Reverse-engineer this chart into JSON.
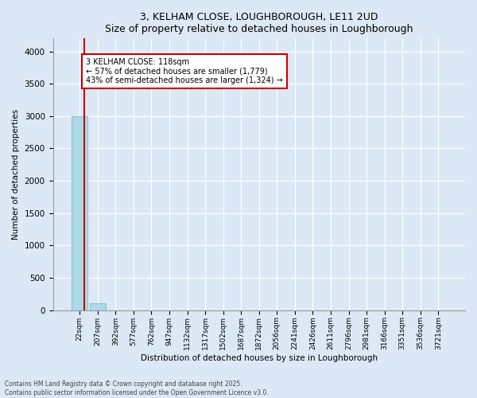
{
  "title1": "3, KELHAM CLOSE, LOUGHBOROUGH, LE11 2UD",
  "title2": "Size of property relative to detached houses in Loughborough",
  "xlabel": "Distribution of detached houses by size in Loughborough",
  "ylabel": "Number of detached properties",
  "categories": [
    "22sqm",
    "207sqm",
    "392sqm",
    "577sqm",
    "762sqm",
    "947sqm",
    "1132sqm",
    "1317sqm",
    "1502sqm",
    "1687sqm",
    "1872sqm",
    "2056sqm",
    "2241sqm",
    "2426sqm",
    "2611sqm",
    "2796sqm",
    "2981sqm",
    "3166sqm",
    "3351sqm",
    "3536sqm",
    "3721sqm"
  ],
  "values": [
    3000,
    110,
    0,
    0,
    0,
    0,
    0,
    0,
    0,
    0,
    0,
    0,
    0,
    0,
    0,
    0,
    0,
    0,
    0,
    0,
    0
  ],
  "bar_color": "#add8e6",
  "bar_edge_color": "#7ab0d0",
  "annotation_text": "3 KELHAM CLOSE: 118sqm\n← 57% of detached houses are smaller (1,779)\n43% of semi-detached houses are larger (1,324) →",
  "annotation_box_color": "#cc0000",
  "annotation_text_color": "#000000",
  "vline_color": "#cc0000",
  "ylim": [
    0,
    4200
  ],
  "yticks": [
    0,
    500,
    1000,
    1500,
    2000,
    2500,
    3000,
    3500,
    4000
  ],
  "background_color": "#dce8f5",
  "plot_bg_color": "#dce8f5",
  "fig_bg_color": "#dce8f5",
  "grid_color": "#ffffff",
  "footer1": "Contains HM Land Registry data © Crown copyright and database right 2025.",
  "footer2": "Contains public sector information licensed under the Open Government Licence v3.0."
}
